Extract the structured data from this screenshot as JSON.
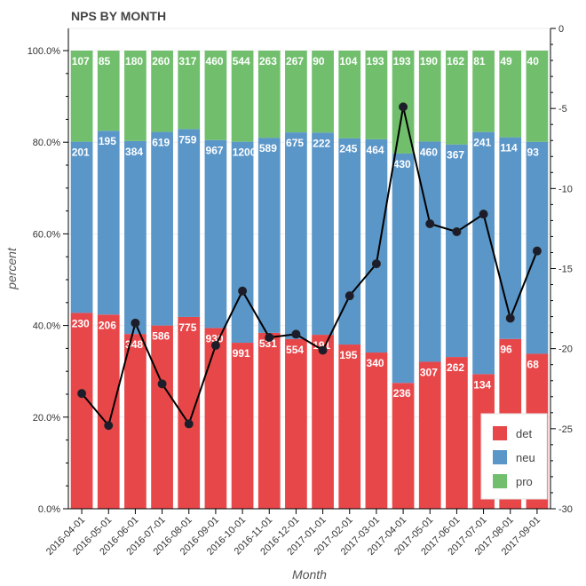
{
  "chart_data": {
    "type": "bar",
    "stacked": true,
    "title": "NPS BY MONTH",
    "xlabel": "Month",
    "ylabel": "percent",
    "ylim": [
      0,
      1
    ],
    "y_ticks": [
      "0.0%",
      "20.0%",
      "40.0%",
      "60.0%",
      "80.0%",
      "100.0%"
    ],
    "y2_ticks": [
      "0",
      "-5",
      "-10",
      "-15",
      "-20",
      "-25",
      "-30"
    ],
    "y2lim": [
      -30,
      0
    ],
    "grid": true,
    "legend_position": "bottom-right",
    "categories": [
      "2016-04-01",
      "2016-05-01",
      "2016-06-01",
      "2016-07-01",
      "2016-08-01",
      "2016-09-01",
      "2016-10-01",
      "2016-11-01",
      "2016-12-01",
      "2017-01-01",
      "2017-02-01",
      "2017-03-01",
      "2017-04-01",
      "2017-05-01",
      "2017-06-01",
      "2017-07-01",
      "2017-08-01",
      "2017-09-01"
    ],
    "series": [
      {
        "name": "det",
        "color": "#e8474a",
        "values": [
          230,
          206,
          348,
          586,
          775,
          930,
          991,
          531,
          554,
          191,
          195,
          340,
          236,
          307,
          262,
          134,
          96,
          68
        ]
      },
      {
        "name": "neu",
        "color": "#5b96c8",
        "values": [
          201,
          195,
          384,
          619,
          759,
          967,
          1200,
          589,
          675,
          222,
          245,
          464,
          430,
          460,
          367,
          241,
          114,
          93
        ]
      },
      {
        "name": "pro",
        "color": "#71bf6d",
        "values": [
          107,
          85,
          180,
          260,
          317,
          460,
          544,
          263,
          267,
          90,
          104,
          193,
          193,
          190,
          162,
          81,
          49,
          40
        ]
      }
    ],
    "line_series": {
      "axis": "right",
      "color": "#000000",
      "values": [
        -22.8,
        -24.8,
        -18.4,
        -22.2,
        -24.7,
        -19.8,
        -16.4,
        -19.3,
        -19.1,
        -20.1,
        -16.7,
        -14.7,
        -4.9,
        -12.2,
        -12.7,
        -11.6,
        -18.1,
        -13.9
      ]
    }
  }
}
